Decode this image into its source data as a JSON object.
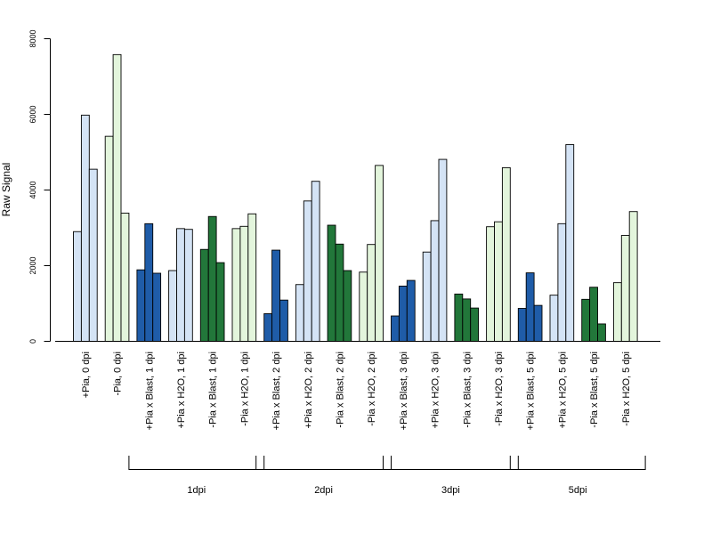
{
  "chart_data": {
    "type": "bar",
    "title": "",
    "ylabel": "Raw Signal",
    "xlabel": "",
    "ylim": [
      0,
      8000
    ],
    "yticks": [
      0,
      2000,
      4000,
      6000,
      8000
    ],
    "grid": false,
    "legend": "none",
    "categories": [
      "+Pia, 0 dpi",
      "-Pia, 0 dpi",
      "+Pia x Blast, 1 dpi",
      "+Pia x H2O, 1 dpi",
      "-Pia x Blast, 1 dpi",
      "-Pia x H2O, 1 dpi",
      "+Pia x Blast, 2 dpi",
      "+Pia x H2O, 2 dpi",
      "-Pia x Blast, 2 dpi",
      "-Pia x H2O, 2 dpi",
      "+Pia x Blast, 3 dpi",
      "+Pia x H2O, 3 dpi",
      "-Pia x Blast, 3 dpi",
      "-Pia x H2O, 3 dpi",
      "+Pia x Blast, 5 dpi",
      "+Pia x H2O, 5 dpi",
      "-Pia x Blast, 5 dpi",
      "-Pia x H2O, 5 dpi"
    ],
    "colors": [
      "#d4e3f5",
      "#e3f5dc",
      "#1f5ca8",
      "#d4e3f5",
      "#22773a",
      "#e3f5dc",
      "#1f5ca8",
      "#d4e3f5",
      "#22773a",
      "#e3f5dc",
      "#1f5ca8",
      "#d4e3f5",
      "#22773a",
      "#e3f5dc",
      "#1f5ca8",
      "#d4e3f5",
      "#22773a",
      "#e3f5dc"
    ],
    "values": [
      [
        2900,
        5980,
        4550
      ],
      [
        5420,
        7580,
        3390
      ],
      [
        1890,
        3110,
        1800
      ],
      [
        1870,
        2980,
        2960
      ],
      [
        2430,
        3300,
        2080
      ],
      [
        2980,
        3040,
        3370
      ],
      [
        730,
        2410,
        1090
      ],
      [
        1500,
        3710,
        4230
      ],
      [
        3070,
        2570,
        1870
      ],
      [
        1830,
        2560,
        4650
      ],
      [
        670,
        1460,
        1610
      ],
      [
        2360,
        3190,
        4810
      ],
      [
        1250,
        1120,
        880
      ],
      [
        3030,
        3160,
        4590
      ],
      [
        870,
        1810,
        950
      ],
      [
        1220,
        3110,
        5200
      ],
      [
        1110,
        1430,
        460
      ],
      [
        1550,
        2800,
        3430
      ]
    ],
    "groups": [
      {
        "label": "1dpi",
        "from": 2,
        "to": 5
      },
      {
        "label": "2dpi",
        "from": 6,
        "to": 9
      },
      {
        "label": "3dpi",
        "from": 10,
        "to": 13
      },
      {
        "label": "5dpi",
        "from": 14,
        "to": 17
      }
    ]
  }
}
